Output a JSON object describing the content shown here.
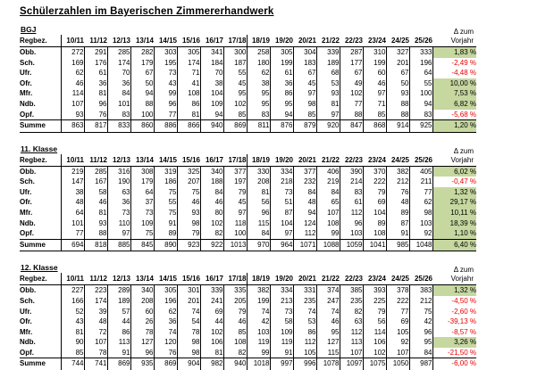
{
  "title": "Schülerzahlen im Bayerischen Zimmererhandwerk",
  "row_header": "Regbez.",
  "years": [
    "10/11",
    "11/12",
    "12/13",
    "13/14",
    "14/15",
    "15/16",
    "16/17",
    "17/18",
    "18/19",
    "19/20",
    "20/21",
    "21/22",
    "22/23",
    "23/24",
    "24/25",
    "25/26"
  ],
  "delta_header": {
    "line1": "Δ zum",
    "line2": "Vorjahr"
  },
  "colors": {
    "positive_bg": "#c6d7a0",
    "negative_text": "#e80000",
    "border": "#000000"
  },
  "sections": [
    {
      "id": "bgj",
      "label": "BGJ",
      "rows": [
        {
          "name": "Obb.",
          "values": [
            272,
            291,
            285,
            282,
            303,
            305,
            341,
            300,
            258,
            305,
            304,
            339,
            287,
            310,
            327,
            333
          ],
          "delta": "1,83 %",
          "trend": "positive"
        },
        {
          "name": "Sch.",
          "values": [
            169,
            176,
            174,
            179,
            195,
            174,
            184,
            187,
            180,
            199,
            183,
            189,
            177,
            199,
            201,
            196
          ],
          "delta": "-2,49 %",
          "trend": "negative"
        },
        {
          "name": "Ufr.",
          "values": [
            62,
            61,
            70,
            67,
            73,
            71,
            70,
            55,
            62,
            61,
            67,
            68,
            67,
            60,
            67,
            64
          ],
          "delta": "-4,48 %",
          "trend": "negative"
        },
        {
          "name": "Ofr.",
          "values": [
            46,
            36,
            36,
            50,
            43,
            41,
            38,
            45,
            38,
            36,
            45,
            53,
            49,
            46,
            50,
            55
          ],
          "delta": "10,00 %",
          "trend": "positive"
        },
        {
          "name": "Mfr.",
          "values": [
            114,
            81,
            84,
            94,
            99,
            108,
            104,
            95,
            95,
            86,
            97,
            93,
            102,
            97,
            93,
            100
          ],
          "delta": "7,53 %",
          "trend": "positive"
        },
        {
          "name": "Ndb.",
          "values": [
            107,
            96,
            101,
            88,
            96,
            86,
            109,
            102,
            95,
            95,
            98,
            81,
            77,
            71,
            88,
            94
          ],
          "delta": "6,82 %",
          "trend": "positive"
        },
        {
          "name": "Opf.",
          "values": [
            93,
            76,
            83,
            100,
            77,
            81,
            94,
            85,
            83,
            94,
            85,
            97,
            88,
            85,
            88,
            83
          ],
          "delta": "-5,68 %",
          "trend": "negative"
        }
      ],
      "total": {
        "name": "Summe",
        "values": [
          863,
          817,
          833,
          860,
          886,
          866,
          940,
          869,
          811,
          876,
          879,
          920,
          847,
          868,
          914,
          925
        ],
        "delta": "1,20 %",
        "trend": "positive"
      }
    },
    {
      "id": "klasse-11",
      "label": "11. Klasse",
      "rows": [
        {
          "name": "Obb.",
          "values": [
            219,
            285,
            316,
            308,
            319,
            325,
            340,
            377,
            330,
            334,
            377,
            406,
            390,
            370,
            382,
            405
          ],
          "delta": "6,02 %",
          "trend": "positive"
        },
        {
          "name": "Sch.",
          "values": [
            147,
            167,
            190,
            179,
            186,
            207,
            188,
            197,
            208,
            218,
            232,
            219,
            214,
            222,
            212,
            211
          ],
          "delta": "-0,47 %",
          "trend": "negative"
        },
        {
          "name": "Ufr.",
          "values": [
            38,
            58,
            63,
            64,
            75,
            75,
            84,
            79,
            81,
            73,
            84,
            84,
            83,
            79,
            76,
            77
          ],
          "delta": "1,32 %",
          "trend": "positive"
        },
        {
          "name": "Ofr.",
          "values": [
            48,
            46,
            36,
            37,
            55,
            46,
            46,
            45,
            56,
            51,
            48,
            65,
            61,
            69,
            48,
            62
          ],
          "delta": "29,17 %",
          "trend": "positive"
        },
        {
          "name": "Mfr.",
          "values": [
            64,
            81,
            73,
            73,
            75,
            93,
            80,
            97,
            96,
            87,
            94,
            107,
            112,
            104,
            89,
            98
          ],
          "delta": "10,11 %",
          "trend": "positive"
        },
        {
          "name": "Ndb.",
          "values": [
            101,
            93,
            110,
            109,
            91,
            98,
            102,
            118,
            115,
            104,
            124,
            108,
            96,
            89,
            87,
            103
          ],
          "delta": "18,39 %",
          "trend": "positive"
        },
        {
          "name": "Opf.",
          "values": [
            77,
            88,
            97,
            75,
            89,
            79,
            82,
            100,
            84,
            97,
            112,
            99,
            103,
            108,
            91,
            92
          ],
          "delta": "1,10 %",
          "trend": "positive"
        }
      ],
      "total": {
        "name": "Summe",
        "values": [
          694,
          818,
          885,
          845,
          890,
          923,
          922,
          1013,
          970,
          964,
          1071,
          1088,
          1059,
          1041,
          985,
          1048
        ],
        "delta": "6,40 %",
        "trend": "positive"
      }
    },
    {
      "id": "klasse-12",
      "label": "12. Klasse",
      "rows": [
        {
          "name": "Obb.",
          "values": [
            227,
            223,
            289,
            340,
            305,
            301,
            339,
            335,
            382,
            334,
            331,
            374,
            385,
            393,
            378,
            383
          ],
          "delta": "1,32 %",
          "trend": "positive"
        },
        {
          "name": "Sch.",
          "values": [
            166,
            174,
            189,
            208,
            196,
            201,
            241,
            205,
            199,
            213,
            235,
            247,
            235,
            225,
            222,
            212
          ],
          "delta": "-4,50 %",
          "trend": "negative"
        },
        {
          "name": "Ufr.",
          "values": [
            52,
            39,
            57,
            60,
            62,
            74,
            69,
            79,
            74,
            73,
            74,
            74,
            82,
            79,
            77,
            75
          ],
          "delta": "-2,60 %",
          "trend": "negative"
        },
        {
          "name": "Ofr.",
          "values": [
            43,
            48,
            44,
            26,
            36,
            54,
            44,
            46,
            42,
            58,
            53,
            46,
            63,
            56,
            69,
            42
          ],
          "delta": "-39,13 %",
          "trend": "negative"
        },
        {
          "name": "Mfr.",
          "values": [
            81,
            72,
            86,
            78,
            74,
            78,
            102,
            85,
            103,
            109,
            86,
            95,
            112,
            114,
            105,
            96
          ],
          "delta": "-8,57 %",
          "trend": "negative"
        },
        {
          "name": "Ndb.",
          "values": [
            90,
            107,
            113,
            127,
            120,
            98,
            106,
            108,
            119,
            119,
            112,
            127,
            113,
            106,
            92,
            95
          ],
          "delta": "3,26 %",
          "trend": "positive"
        },
        {
          "name": "Opf.",
          "values": [
            85,
            78,
            91,
            96,
            76,
            98,
            81,
            82,
            99,
            91,
            105,
            115,
            107,
            102,
            107,
            84
          ],
          "delta": "-21,50 %",
          "trend": "negative"
        }
      ],
      "total": {
        "name": "Summe",
        "values": [
          744,
          741,
          869,
          935,
          869,
          904,
          982,
          940,
          1018,
          997,
          996,
          1078,
          1097,
          1075,
          1050,
          987
        ],
        "delta": "-6,00 %",
        "trend": "negative"
      }
    }
  ]
}
